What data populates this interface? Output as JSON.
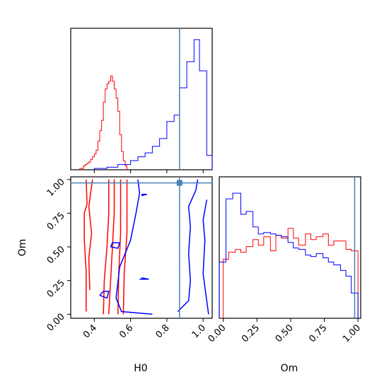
{
  "chart_data": {
    "type": "corner",
    "parameters": [
      "H0",
      "Om"
    ],
    "xlabel_h0": "H0",
    "xlabel_om": "Om",
    "ylabel_om": "Om",
    "h0_range": [
      0.27,
      1.05
    ],
    "om_range": [
      -0.03,
      1.02
    ],
    "h0_ticks": [
      "0.4",
      "0.6",
      "0.8",
      "1.0"
    ],
    "om_ticks": [
      "0.00",
      "0.25",
      "0.50",
      "0.75",
      "1.00"
    ],
    "truth": {
      "H0": 0.87,
      "Om": 0.975
    },
    "colors": {
      "series_a": "#ff0000",
      "series_b": "#0000ff",
      "truth": "#4682b4"
    },
    "h0_hist_series_a": {
      "edges": [
        0.32,
        0.34,
        0.35,
        0.36,
        0.37,
        0.38,
        0.39,
        0.4,
        0.41,
        0.42,
        0.43,
        0.44,
        0.45,
        0.46,
        0.47,
        0.48,
        0.49,
        0.5,
        0.51,
        0.52,
        0.53,
        0.54,
        0.55,
        0.56,
        0.57,
        0.58
      ],
      "counts": [
        0.01,
        0.03,
        0.04,
        0.05,
        0.06,
        0.08,
        0.1,
        0.12,
        0.15,
        0.22,
        0.3,
        0.38,
        0.52,
        0.62,
        0.66,
        0.68,
        0.72,
        0.68,
        0.62,
        0.55,
        0.45,
        0.27,
        0.14,
        0.07,
        0.03
      ]
    },
    "h0_hist_series_b": {
      "edges": [
        0.4,
        0.47,
        0.53,
        0.6,
        0.64,
        0.68,
        0.72,
        0.76,
        0.8,
        0.84,
        0.87,
        0.91,
        0.95,
        0.98,
        1.02,
        1.05
      ],
      "counts": [
        0.01,
        0.02,
        0.04,
        0.07,
        0.1,
        0.13,
        0.18,
        0.24,
        0.37,
        0.42,
        0.63,
        0.83,
        1.0,
        0.76,
        0.11
      ]
    },
    "om_hist_series_a": {
      "edges": [
        0.0,
        0.04,
        0.09,
        0.13,
        0.17,
        0.22,
        0.26,
        0.3,
        0.35,
        0.39,
        0.43,
        0.48,
        0.52,
        0.56,
        0.61,
        0.65,
        0.69,
        0.74,
        0.78,
        0.82,
        0.87,
        0.91,
        0.95,
        1.0
      ],
      "counts": [
        0.42,
        0.47,
        0.49,
        0.47,
        0.51,
        0.56,
        0.52,
        0.58,
        0.48,
        0.59,
        0.57,
        0.64,
        0.57,
        0.52,
        0.6,
        0.56,
        0.58,
        0.6,
        0.52,
        0.55,
        0.55,
        0.49,
        0.48
      ]
    },
    "om_hist_series_b": {
      "edges": [
        -0.03,
        0.02,
        0.07,
        0.13,
        0.17,
        0.22,
        0.26,
        0.3,
        0.35,
        0.39,
        0.43,
        0.48,
        0.52,
        0.56,
        0.61,
        0.65,
        0.69,
        0.74,
        0.78,
        0.82,
        0.87,
        0.91,
        0.95,
        1.0
      ],
      "counts": [
        0.4,
        0.85,
        0.89,
        0.74,
        0.76,
        0.65,
        0.6,
        0.61,
        0.6,
        0.59,
        0.58,
        0.54,
        0.5,
        0.49,
        0.45,
        0.44,
        0.46,
        0.43,
        0.4,
        0.38,
        0.34,
        0.3,
        0.18
      ]
    },
    "contours_series_a": [
      [
        [
          0.355,
          0.02
        ],
        [
          0.355,
          0.32
        ],
        [
          0.345,
          0.55
        ],
        [
          0.345,
          0.75
        ],
        [
          0.36,
          0.82
        ],
        [
          0.355,
          1.0
        ]
      ],
      [
        [
          0.375,
          0.18
        ],
        [
          0.37,
          0.42
        ],
        [
          0.385,
          0.6
        ],
        [
          0.37,
          0.8
        ],
        [
          0.39,
          1.0
        ]
      ],
      [
        [
          0.45,
          0.0
        ],
        [
          0.455,
          0.25
        ],
        [
          0.47,
          0.5
        ],
        [
          0.48,
          0.75
        ],
        [
          0.48,
          1.0
        ]
      ],
      [
        [
          0.48,
          0.0
        ],
        [
          0.49,
          0.25
        ],
        [
          0.5,
          0.5
        ],
        [
          0.51,
          0.75
        ],
        [
          0.51,
          1.0
        ]
      ],
      [
        [
          0.53,
          0.0
        ],
        [
          0.535,
          0.3
        ],
        [
          0.545,
          0.6
        ],
        [
          0.545,
          1.0
        ]
      ],
      [
        [
          0.56,
          0.0
        ],
        [
          0.565,
          0.3
        ],
        [
          0.58,
          0.6
        ],
        [
          0.58,
          1.0
        ]
      ]
    ],
    "contours_series_b": [
      [
        [
          0.72,
          0.0
        ],
        [
          0.55,
          0.02
        ],
        [
          0.52,
          0.12
        ],
        [
          0.54,
          0.35
        ],
        [
          0.6,
          0.55
        ],
        [
          0.63,
          0.75
        ],
        [
          0.65,
          0.9
        ],
        [
          0.64,
          1.0
        ]
      ],
      [
        [
          0.86,
          0.02
        ],
        [
          0.92,
          0.1
        ],
        [
          0.93,
          0.25
        ],
        [
          0.92,
          0.45
        ],
        [
          0.93,
          0.65
        ],
        [
          0.92,
          0.8
        ],
        [
          0.96,
          0.92
        ],
        [
          0.97,
          1.0
        ]
      ],
      [
        [
          1.02,
          0.85
        ],
        [
          1.0,
          0.7
        ],
        [
          1.01,
          0.55
        ],
        [
          1.0,
          0.3
        ],
        [
          1.02,
          0.1
        ],
        [
          1.03,
          0.0
        ]
      ],
      [
        [
          0.43,
          0.14
        ],
        [
          0.47,
          0.12
        ],
        [
          0.48,
          0.17
        ],
        [
          0.45,
          0.17
        ],
        [
          0.43,
          0.14
        ]
      ],
      [
        [
          0.49,
          0.5
        ],
        [
          0.53,
          0.49
        ],
        [
          0.54,
          0.53
        ],
        [
          0.5,
          0.53
        ],
        [
          0.49,
          0.5
        ]
      ],
      [
        [
          0.66,
          0.88
        ],
        [
          0.69,
          0.89
        ],
        [
          0.66,
          0.89
        ]
      ],
      [
        [
          0.65,
          0.26
        ],
        [
          0.7,
          0.26
        ],
        [
          0.66,
          0.27
        ]
      ]
    ]
  }
}
